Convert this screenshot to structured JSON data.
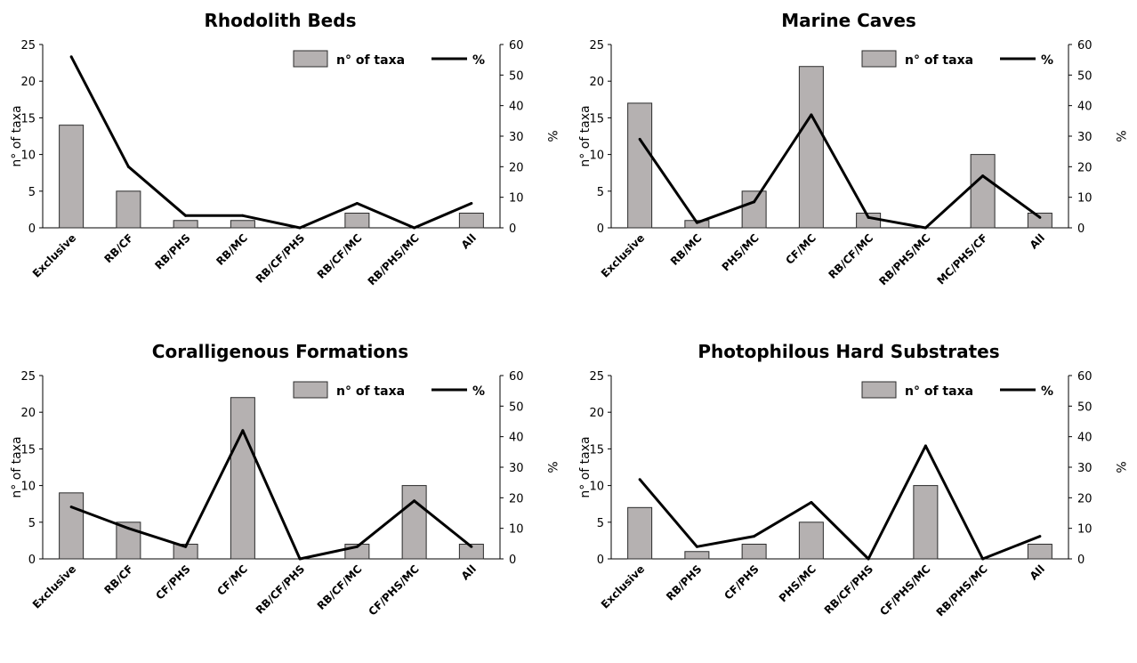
{
  "colors": {
    "bar_fill": "#b5b1b1",
    "bar_stroke": "#2b2b2b",
    "line": "#000000",
    "axis": "#000000"
  },
  "legend": {
    "bar_label": "n° of taxa",
    "line_label": "%"
  },
  "chart_data": [
    {
      "type": "bar",
      "title": "Rhodolith Beds",
      "ylabel": "n° of taxa",
      "y2label": "%",
      "ylim": [
        0,
        25
      ],
      "yticks": [
        0,
        5,
        10,
        15,
        20,
        25
      ],
      "y2lim": [
        0,
        60
      ],
      "y2ticks": [
        0,
        10,
        20,
        30,
        40,
        50,
        60
      ],
      "legend_position": "top-right",
      "grid": false,
      "categories": [
        "Exclusive",
        "RB/CF",
        "RB/PHS",
        "RB/MC",
        "RB/CF/PHS",
        "RB/CF/MC",
        "RB/PHS/MC",
        "All"
      ],
      "series": [
        {
          "name": "n° of taxa",
          "type": "bar",
          "axis": "left",
          "values": [
            14,
            5,
            1,
            1,
            0,
            2,
            0,
            2
          ]
        },
        {
          "name": "%",
          "type": "line",
          "axis": "right",
          "values": [
            56,
            20,
            4,
            4,
            0,
            8,
            0,
            8
          ]
        }
      ]
    },
    {
      "type": "bar",
      "title": "Marine Caves",
      "ylabel": "n° of taxa",
      "y2label": "%",
      "ylim": [
        0,
        25
      ],
      "yticks": [
        0,
        5,
        10,
        15,
        20,
        25
      ],
      "y2lim": [
        0,
        60
      ],
      "y2ticks": [
        0,
        10,
        20,
        30,
        40,
        50,
        60
      ],
      "legend_position": "top-right",
      "grid": false,
      "categories": [
        "Exclusive",
        "RB/MC",
        "PHS/MC",
        "CF/MC",
        "RB/CF/MC",
        "RB/PHS/MC",
        "MC/PHS/CF",
        "All"
      ],
      "series": [
        {
          "name": "n° of taxa",
          "type": "bar",
          "axis": "left",
          "values": [
            17,
            1,
            5,
            22,
            2,
            0,
            10,
            2
          ]
        },
        {
          "name": "%",
          "type": "line",
          "axis": "right",
          "values": [
            29,
            1.7,
            8.5,
            37,
            3.4,
            0,
            17,
            3.4
          ]
        }
      ]
    },
    {
      "type": "bar",
      "title": "Coralligenous Formations",
      "ylabel": "n° of taxa",
      "y2label": "%",
      "ylim": [
        0,
        25
      ],
      "yticks": [
        0,
        5,
        10,
        15,
        20,
        25
      ],
      "y2lim": [
        0,
        60
      ],
      "y2ticks": [
        0,
        10,
        20,
        30,
        40,
        50,
        60
      ],
      "legend_position": "top-right",
      "grid": false,
      "categories": [
        "Exclusive",
        "RB/CF",
        "CF/PHS",
        "CF/MC",
        "RB/CF/PHS",
        "RB/CF/MC",
        "CF/PHS/MC",
        "All"
      ],
      "series": [
        {
          "name": "n° of taxa",
          "type": "bar",
          "axis": "left",
          "values": [
            9,
            5,
            2,
            22,
            0,
            2,
            10,
            2
          ]
        },
        {
          "name": "%",
          "type": "line",
          "axis": "right",
          "values": [
            17,
            10,
            4,
            42,
            0,
            4,
            19,
            4
          ]
        }
      ]
    },
    {
      "type": "bar",
      "title": "Photophilous Hard Substrates",
      "ylabel": "n° of taxa",
      "y2label": "%",
      "ylim": [
        0,
        25
      ],
      "yticks": [
        0,
        5,
        10,
        15,
        20,
        25
      ],
      "y2lim": [
        0,
        60
      ],
      "y2ticks": [
        0,
        10,
        20,
        30,
        40,
        50,
        60
      ],
      "legend_position": "top-right",
      "grid": false,
      "categories": [
        "Exclusive",
        "RB/PHS",
        "CF/PHS",
        "PHS/MC",
        "RB/CF/PHS",
        "CF/PHS/MC",
        "RB/PHS/MC",
        "All"
      ],
      "series": [
        {
          "name": "n° of taxa",
          "type": "bar",
          "axis": "left",
          "values": [
            7,
            1,
            2,
            5,
            0,
            10,
            0,
            2
          ]
        },
        {
          "name": "%",
          "type": "line",
          "axis": "right",
          "values": [
            26,
            4,
            7.4,
            18.5,
            0,
            37,
            0,
            7.4
          ]
        }
      ]
    }
  ]
}
